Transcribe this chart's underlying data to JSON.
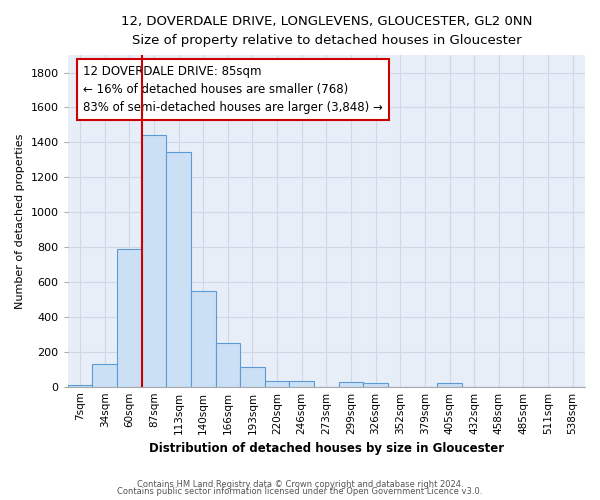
{
  "title_line1": "12, DOVERDALE DRIVE, LONGLEVENS, GLOUCESTER, GL2 0NN",
  "title_line2": "Size of property relative to detached houses in Gloucester",
  "xlabel": "Distribution of detached houses by size in Gloucester",
  "ylabel": "Number of detached properties",
  "bar_labels": [
    "7sqm",
    "34sqm",
    "60sqm",
    "87sqm",
    "113sqm",
    "140sqm",
    "166sqm",
    "193sqm",
    "220sqm",
    "246sqm",
    "273sqm",
    "299sqm",
    "326sqm",
    "352sqm",
    "379sqm",
    "405sqm",
    "432sqm",
    "458sqm",
    "485sqm",
    "511sqm",
    "538sqm"
  ],
  "bar_heights": [
    10,
    130,
    790,
    1440,
    1345,
    550,
    250,
    110,
    35,
    30,
    0,
    25,
    20,
    0,
    0,
    20,
    0,
    0,
    0,
    0,
    0
  ],
  "bar_color": "#cce0f5",
  "bar_edge_color": "#5b9bd5",
  "annotation_text": "12 DOVERDALE DRIVE: 85sqm\n← 16% of detached houses are smaller (768)\n83% of semi-detached houses are larger (3,848) →",
  "annotation_box_color": "#ffffff",
  "annotation_border_color": "#cc0000",
  "red_line_color": "#cc0000",
  "red_line_index": 3,
  "ylim": [
    0,
    1900
  ],
  "yticks": [
    0,
    200,
    400,
    600,
    800,
    1000,
    1200,
    1400,
    1600,
    1800
  ],
  "grid_color": "#d0d8e8",
  "background_color": "#e8eef8",
  "footer_line1": "Contains HM Land Registry data © Crown copyright and database right 2024.",
  "footer_line2": "Contains public sector information licensed under the Open Government Licence v3.0."
}
